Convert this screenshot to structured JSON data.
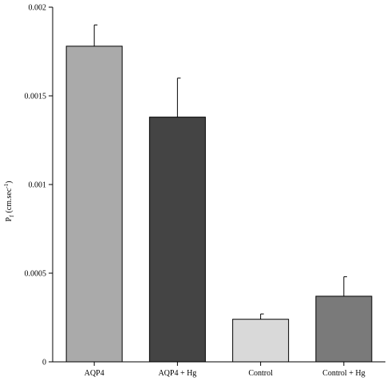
{
  "chart_data": {
    "type": "bar",
    "title": "",
    "xlabel": "",
    "ylabel": "P",
    "ylabel_subscript": "f",
    "ylabel_unit": "(cm.sec",
    "ylabel_unit_sup": "-1",
    "ylabel_unit_close": ")",
    "ylim": [
      0,
      0.002
    ],
    "yticks": [
      0,
      0.0005,
      0.001,
      0.0015,
      0.002
    ],
    "ytick_labels": [
      "0",
      "0.0005",
      "0.001",
      "0.0015",
      "0.002"
    ],
    "categories": [
      "AQP4",
      "AQP4 + Hg",
      "Control",
      "Control + Hg"
    ],
    "values": [
      0.00178,
      0.00138,
      0.00024,
      0.00037
    ],
    "errors": [
      0.00012,
      0.00022,
      3e-05,
      0.00011
    ],
    "colors": [
      "#aaaaaa",
      "#444444",
      "#d9d9d9",
      "#7a7a7a"
    ],
    "grid": false,
    "legend": "none"
  }
}
